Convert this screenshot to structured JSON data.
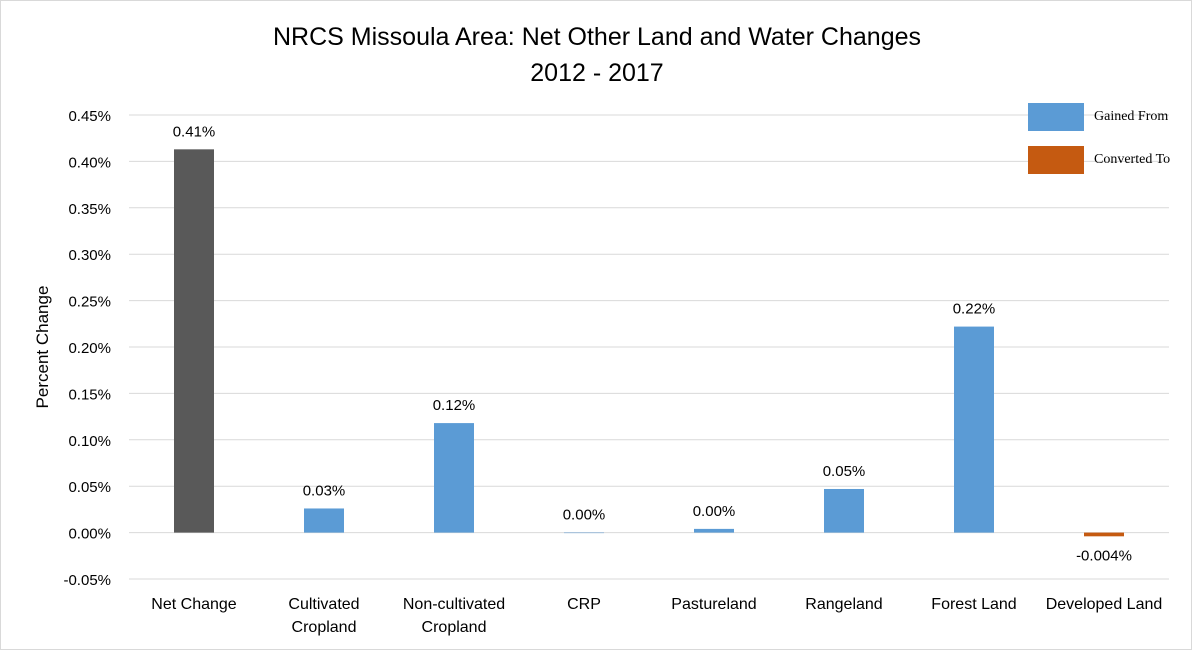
{
  "chart_data": {
    "type": "bar",
    "title": [
      "NRCS Missoula Area: Net Other Land and Water Changes",
      "2012 - 2017"
    ],
    "ylabel": "Percent Change",
    "ylim": [
      -0.05,
      0.45
    ],
    "yticks": [
      -0.05,
      0.0,
      0.05,
      0.1,
      0.15,
      0.2,
      0.25,
      0.3,
      0.35,
      0.4,
      0.45
    ],
    "ytick_labels": [
      "-0.05%",
      "0.00%",
      "0.05%",
      "0.10%",
      "0.15%",
      "0.20%",
      "0.25%",
      "0.30%",
      "0.35%",
      "0.40%",
      "0.45%"
    ],
    "grid": true,
    "categories": [
      [
        "Net Change"
      ],
      [
        "Cultivated",
        "Cropland"
      ],
      [
        "Non-cultivated",
        "Cropland"
      ],
      [
        "CRP"
      ],
      [
        "Pastureland"
      ],
      [
        "Rangeland"
      ],
      [
        "Forest Land"
      ],
      [
        "Developed Land"
      ]
    ],
    "values": [
      0.413,
      0.026,
      0.118,
      0.0,
      0.004,
      0.047,
      0.222,
      -0.004
    ],
    "data_labels": [
      "0.41%",
      "0.03%",
      "0.12%",
      "0.00%",
      "0.00%",
      "0.05%",
      "0.22%",
      "-0.004%"
    ],
    "bar_colors": [
      "#595959",
      "#5b9bd5",
      "#5b9bd5",
      "#5b9bd5",
      "#5b9bd5",
      "#5b9bd5",
      "#5b9bd5",
      "#c55a11"
    ],
    "legend": {
      "placement": "top-right",
      "entries": [
        {
          "label": "Gained From",
          "color": "#5b9bd5"
        },
        {
          "label": "Converted To",
          "color": "#c55a11"
        }
      ]
    }
  }
}
